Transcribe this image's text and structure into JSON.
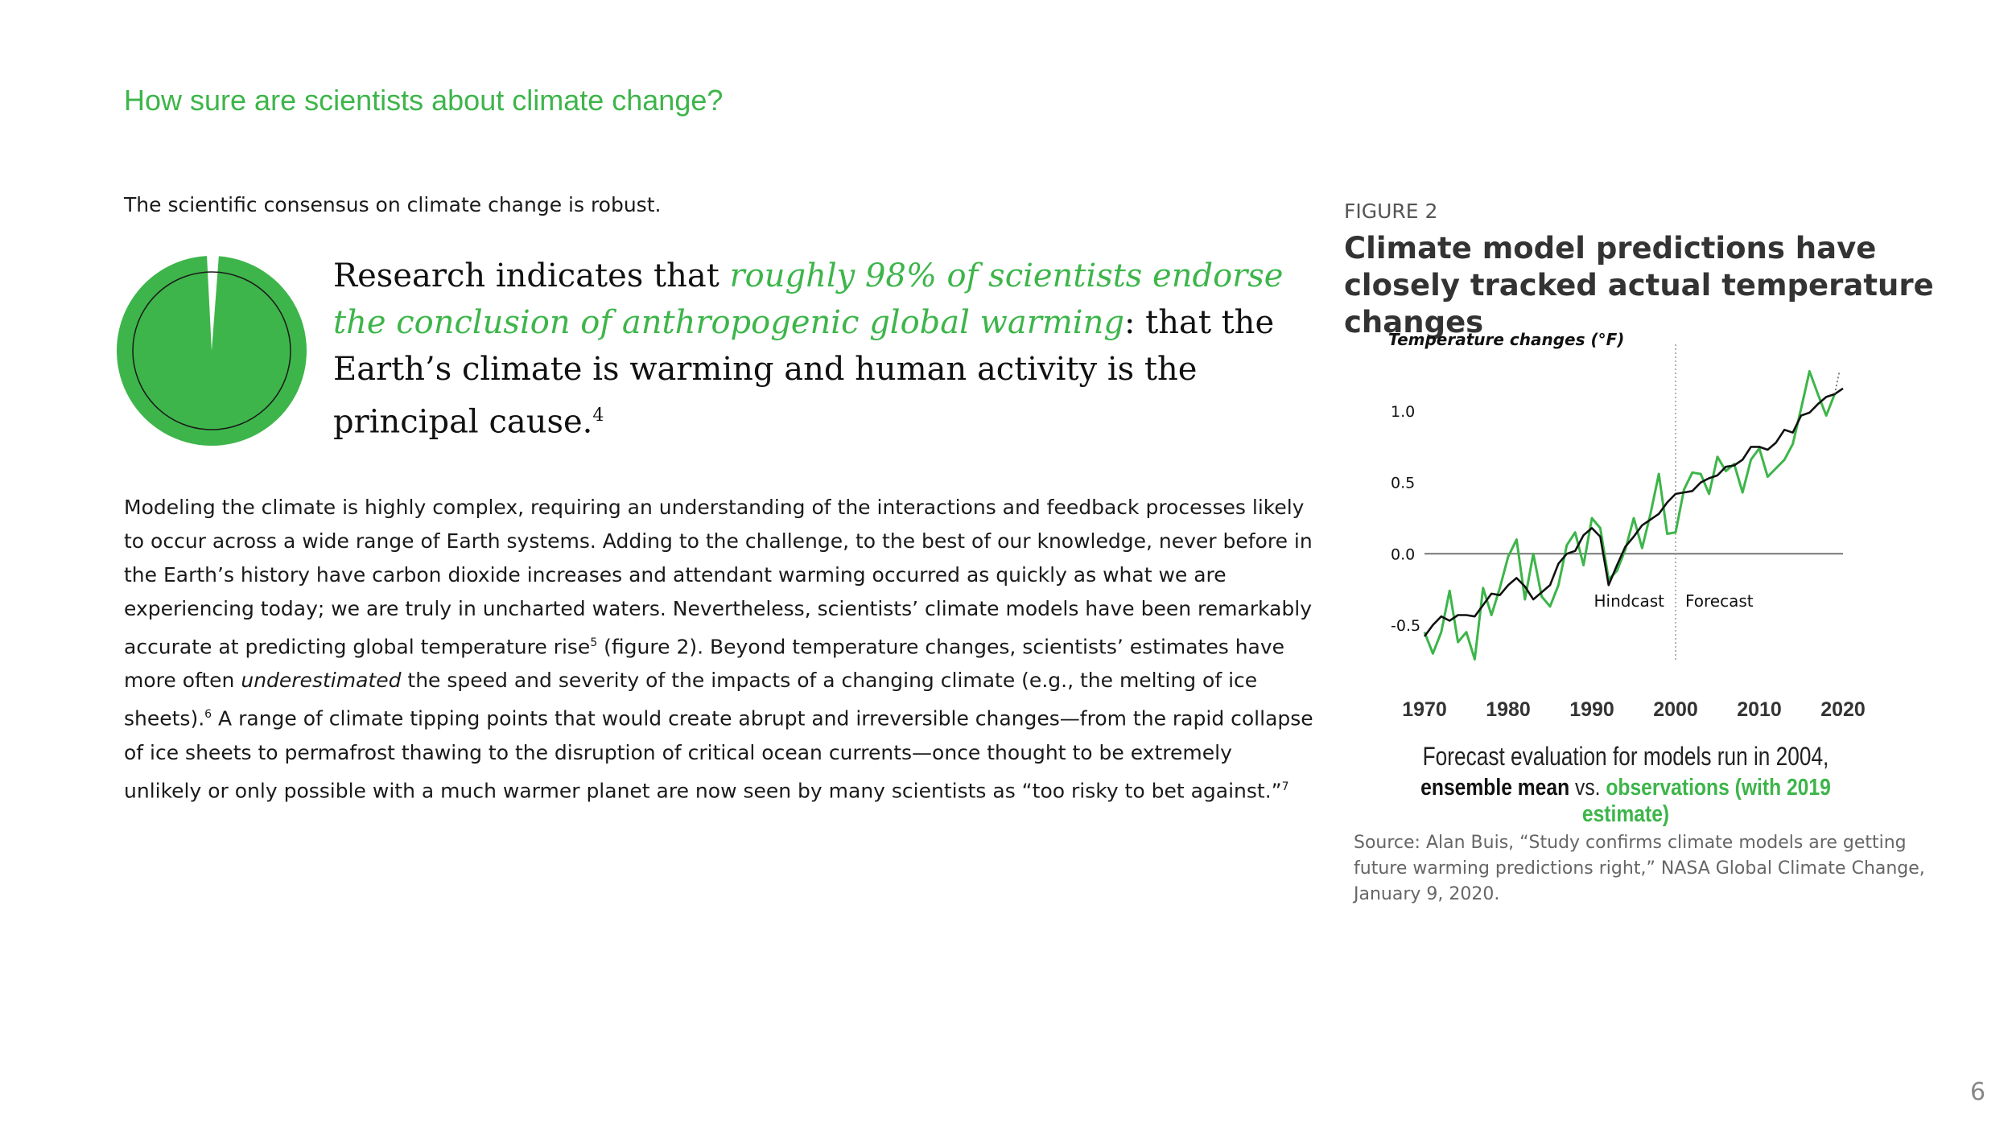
{
  "header": {
    "title": "How sure are scientists about climate change?"
  },
  "lead": "The scientific consensus on climate change is robust.",
  "quote": {
    "before": "Research indicates that ",
    "highlight": "roughly 98% of scientists endorse the conclusion of anthropogenic global warming",
    "after": ": that the Earth’s climate is warming and human activity is the principal cause.",
    "footnote": "4"
  },
  "consensus_share": 0.98,
  "body": {
    "p1": "Modeling the climate is highly complex, requiring an understanding of the interactions and feedback processes likely to occur across a wide range of Earth systems. Adding to the challenge, to the best of our knowledge, never before in the Earth’s history have carbon dioxide increases and attendant warming occurred as quickly as what we are experiencing today; we are truly in uncharted waters. Nevertheless, scientists’ climate models have been remarkably accurate at predicting global temperature rise",
    "fn5": "5",
    "p2": " (figure 2). Beyond temperature changes, scientists’ estimates have more often ",
    "italic": "underestimated",
    "p3": " the speed and severity of the impacts of a changing climate (e.g., the melting of ice sheets).",
    "fn6": "6",
    "p4": " A range of climate tipping points that would create abrupt and irreversible changes—from the rapid collapse of ice sheets to permafrost thawing to the disruption of critical ocean currents—once thought to be extremely unlikely or only possible with a much warmer planet are now seen by many scientists as “too risky to bet against.”",
    "fn7": "7"
  },
  "figure": {
    "label": "FIGURE 2",
    "title": "Climate model predictions have closely tracked actual temperature changes",
    "caption_line1": "Forecast evaluation for models run in 2004,",
    "caption_mean": "ensemble mean",
    "caption_vs": " vs. ",
    "caption_obs": "observations (with 2019 estimate)",
    "source": "Source: Alan Buis, “Study confirms climate models are getting future warming predictions right,” NASA Global Climate Change, January 9, 2020."
  },
  "chart_data": {
    "type": "line",
    "ylabel": "Temperature changes (°F)",
    "yticks": [
      "1.0",
      "0.5",
      "0.0",
      "-0.5"
    ],
    "ytick_values": [
      1.0,
      0.5,
      0.0,
      -0.5
    ],
    "xticks": [
      "1970",
      "1980",
      "1990",
      "2000",
      "2010",
      "2020"
    ],
    "xtick_values": [
      1970,
      1980,
      1990,
      2000,
      2010,
      2020
    ],
    "xlim": [
      1970,
      2020
    ],
    "ylim": [
      -0.8,
      1.3
    ],
    "divider_year": 2000,
    "annotations": {
      "left": "Hindcast",
      "right": "Forecast"
    },
    "series": [
      {
        "name": "observations (with 2019 estimate)",
        "color": "#3db54a",
        "x": [
          1970,
          1971,
          1972,
          1973,
          1974,
          1975,
          1976,
          1977,
          1978,
          1979,
          1980,
          1981,
          1982,
          1983,
          1984,
          1985,
          1986,
          1987,
          1988,
          1989,
          1990,
          1991,
          1992,
          1993,
          1994,
          1995,
          1996,
          1997,
          1998,
          1999,
          2000,
          2001,
          2002,
          2003,
          2004,
          2005,
          2006,
          2007,
          2008,
          2009,
          2010,
          2011,
          2012,
          2013,
          2014,
          2015,
          2016,
          2017,
          2018,
          2019
        ],
        "y": [
          -0.55,
          -0.7,
          -0.55,
          -0.26,
          -0.62,
          -0.55,
          -0.74,
          -0.24,
          -0.43,
          -0.24,
          -0.02,
          0.1,
          -0.32,
          0.0,
          -0.3,
          -0.37,
          -0.22,
          0.06,
          0.15,
          -0.08,
          0.25,
          0.18,
          -0.18,
          -0.12,
          0.03,
          0.25,
          0.04,
          0.28,
          0.56,
          0.14,
          0.15,
          0.45,
          0.57,
          0.56,
          0.42,
          0.68,
          0.58,
          0.63,
          0.43,
          0.66,
          0.74,
          0.54,
          0.6,
          0.66,
          0.77,
          1.02,
          1.28,
          1.12,
          0.97,
          1.12
        ]
      },
      {
        "name": "ensemble mean",
        "color": "#111111",
        "x": [
          1970,
          1971,
          1972,
          1973,
          1974,
          1975,
          1976,
          1977,
          1978,
          1979,
          1980,
          1981,
          1982,
          1983,
          1984,
          1985,
          1986,
          1987,
          1988,
          1989,
          1990,
          1991,
          1992,
          1993,
          1994,
          1995,
          1996,
          1997,
          1998,
          1999,
          2000,
          2001,
          2002,
          2003,
          2004,
          2005,
          2006,
          2007,
          2008,
          2009,
          2010,
          2011,
          2012,
          2013,
          2014,
          2015,
          2016,
          2017,
          2018,
          2019,
          2020
        ],
        "y": [
          -0.58,
          -0.5,
          -0.44,
          -0.47,
          -0.43,
          -0.43,
          -0.44,
          -0.36,
          -0.28,
          -0.29,
          -0.22,
          -0.17,
          -0.23,
          -0.32,
          -0.27,
          -0.22,
          -0.07,
          0.0,
          0.02,
          0.13,
          0.18,
          0.12,
          -0.22,
          -0.08,
          0.05,
          0.12,
          0.2,
          0.24,
          0.28,
          0.36,
          0.42,
          0.43,
          0.44,
          0.5,
          0.53,
          0.55,
          0.61,
          0.62,
          0.66,
          0.75,
          0.75,
          0.73,
          0.78,
          0.87,
          0.85,
          0.97,
          0.99,
          1.05,
          1.1,
          1.12,
          1.16
        ]
      }
    ]
  },
  "page": {
    "number": "6"
  }
}
